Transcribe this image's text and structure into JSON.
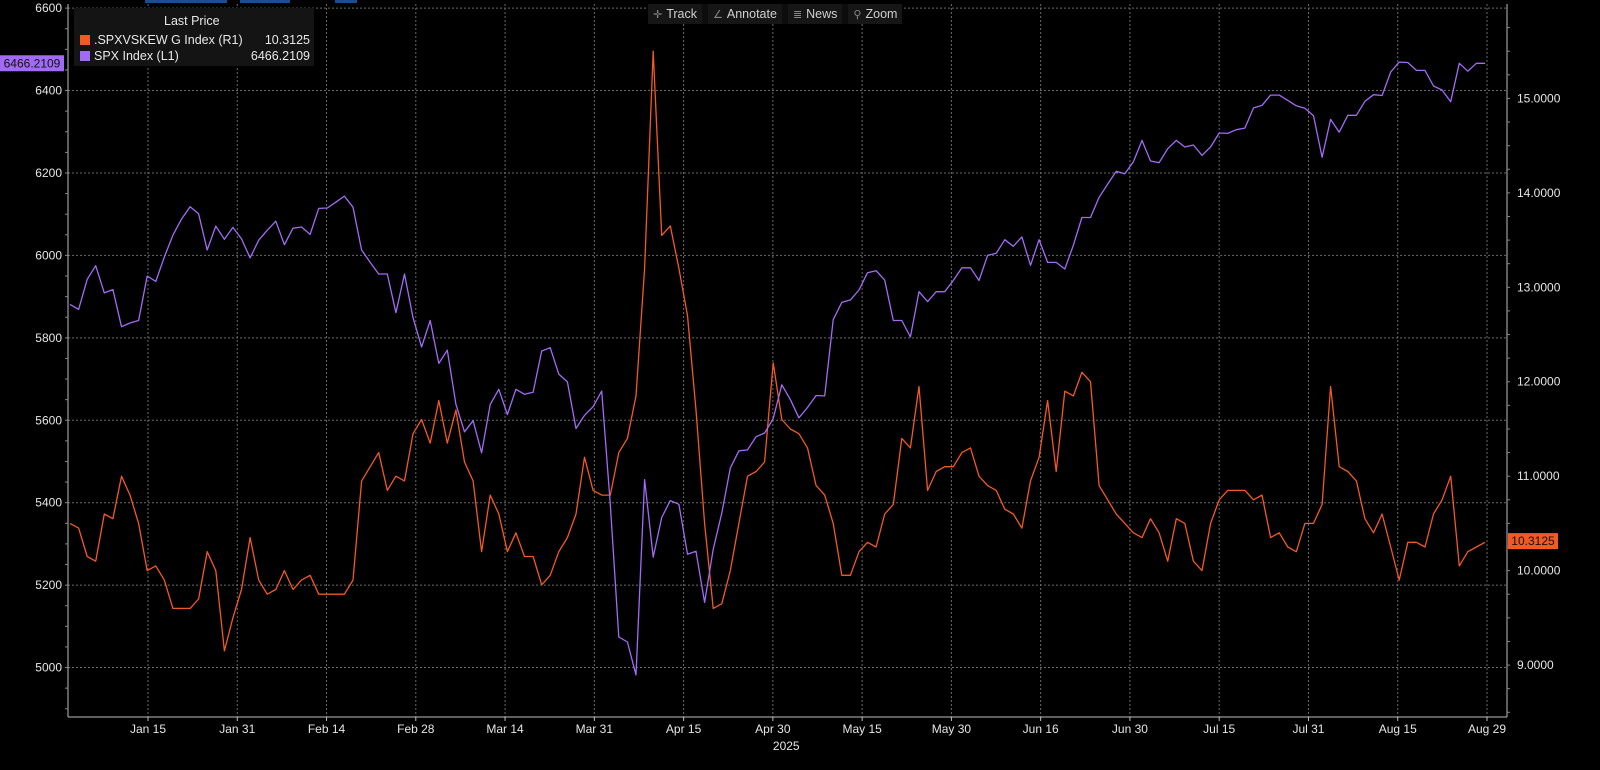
{
  "toolbar": {
    "track_label": "Track",
    "annotate_label": "Annotate",
    "news_label": "News",
    "zoom_label": "Zoom"
  },
  "legend": {
    "title": "Last Price",
    "series": [
      {
        "name": ".SPXVSKEW G Index  (R1)",
        "value": "10.3125",
        "color": "#f25a22"
      },
      {
        "name": "SPX Index  (L1)",
        "value": "6466.2109",
        "color": "#a26bf5"
      }
    ]
  },
  "chart_data": {
    "type": "line",
    "x_tick_labels": [
      "Jan 15",
      "Jan 31",
      "Feb 14",
      "Feb 28",
      "Mar 14",
      "Mar 31",
      "Apr 15",
      "Apr 30",
      "May 15",
      "May 30",
      "Jun 16",
      "Jun 30",
      "Jul 15",
      "Jul 31",
      "Aug 15",
      "Aug 29"
    ],
    "x_year_label": "2025",
    "left_axis": {
      "ticks": [
        "5000",
        "5200",
        "5400",
        "5600",
        "5800",
        "6000",
        "6200",
        "6400",
        "6600"
      ],
      "ylim": [
        4880,
        6610
      ]
    },
    "right_axis": {
      "ticks": [
        "9.0000",
        "10.0000",
        "11.0000",
        "12.0000",
        "13.0000",
        "14.0000",
        "15.0000"
      ],
      "ylim": [
        8.45,
        16.0
      ]
    },
    "last_value_tags": {
      "left": "6466.2109",
      "right": "10.3125"
    },
    "series": [
      {
        "name": ".SPXVSKEW G Index",
        "axis": "right",
        "color": "#f25a22",
        "values": [
          10.5,
          10.45,
          10.15,
          10.1,
          10.6,
          10.55,
          11.0,
          10.8,
          10.5,
          10.0,
          10.05,
          9.9,
          9.6,
          9.6,
          9.6,
          9.7,
          10.2,
          10.0,
          9.15,
          9.5,
          9.8,
          10.35,
          9.9,
          9.75,
          9.8,
          10.0,
          9.8,
          9.9,
          9.95,
          9.75,
          9.75,
          9.75,
          9.75,
          9.9,
          10.95,
          11.1,
          11.25,
          10.85,
          11.0,
          10.95,
          11.45,
          11.6,
          11.35,
          11.8,
          11.35,
          11.7,
          11.15,
          10.95,
          10.2,
          10.8,
          10.6,
          10.2,
          10.4,
          10.15,
          10.15,
          9.85,
          9.95,
          10.2,
          10.35,
          10.6,
          11.2,
          10.85,
          10.8,
          10.8,
          11.25,
          11.4,
          11.85,
          13.2,
          15.5,
          13.55,
          13.65,
          13.2,
          12.7,
          11.7,
          10.5,
          9.6,
          9.65,
          10.0,
          10.5,
          11.0,
          11.05,
          11.15,
          12.2,
          11.6,
          11.5,
          11.45,
          11.3,
          10.9,
          10.8,
          10.5,
          9.95,
          9.95,
          10.2,
          10.3,
          10.25,
          10.6,
          10.7,
          11.4,
          11.3,
          11.95,
          10.85,
          11.05,
          11.1,
          11.1,
          11.25,
          11.3,
          11.0,
          10.9,
          10.85,
          10.65,
          10.6,
          10.45,
          10.95,
          11.2,
          11.8,
          11.05,
          11.9,
          11.85,
          12.1,
          12.0,
          10.9,
          10.75,
          10.6,
          10.5,
          10.4,
          10.35,
          10.55,
          10.4,
          10.1,
          10.55,
          10.5,
          10.1,
          10.0,
          10.5,
          10.75,
          10.85,
          10.85,
          10.85,
          10.75,
          10.8,
          10.35,
          10.4,
          10.25,
          10.2,
          10.5,
          10.5,
          10.7,
          11.95,
          11.1,
          11.05,
          10.95,
          10.55,
          10.4,
          10.6,
          10.25,
          9.9,
          10.3,
          10.3,
          10.25,
          10.6,
          10.75,
          11.0,
          10.05,
          10.2,
          10.25,
          10.3
        ]
      },
      {
        "name": "SPX Index",
        "axis": "left",
        "color": "#a26bf5",
        "values": [
          5881,
          5869,
          5942,
          5975,
          5909,
          5917,
          5827,
          5836,
          5842,
          5950,
          5937,
          5996,
          6049,
          6088,
          6118,
          6101,
          6013,
          6071,
          6039,
          6068,
          6040,
          5994,
          6037,
          6061,
          6083,
          6026,
          6066,
          6069,
          6051,
          6114,
          6115,
          6129,
          6144,
          6117,
          6013,
          5983,
          5955,
          5955,
          5861,
          5955,
          5849,
          5778,
          5842,
          5738,
          5770,
          5639,
          5572,
          5599,
          5521,
          5638,
          5675,
          5614,
          5675,
          5663,
          5668,
          5768,
          5776,
          5712,
          5693,
          5580,
          5612,
          5633,
          5671,
          5396,
          5074,
          5062,
          4982,
          5456,
          5268,
          5364,
          5405,
          5396,
          5275,
          5282,
          5158,
          5287,
          5375,
          5484,
          5526,
          5528,
          5560,
          5569,
          5604,
          5686,
          5650,
          5606,
          5631,
          5660,
          5659,
          5844,
          5886,
          5892,
          5916,
          5958,
          5963,
          5940,
          5842,
          5842,
          5802,
          5912,
          5888,
          5912,
          5912,
          5939,
          5970,
          5970,
          5939,
          6000,
          6005,
          6038,
          6022,
          6045,
          5976,
          6038,
          5983,
          5983,
          5967,
          6025,
          6092,
          6092,
          6141,
          6173,
          6204,
          6198,
          6227,
          6279,
          6229,
          6225,
          6259,
          6279,
          6263,
          6268,
          6243,
          6263,
          6297,
          6296,
          6305,
          6309,
          6358,
          6364,
          6389,
          6389,
          6376,
          6363,
          6357,
          6339,
          6238,
          6330,
          6299,
          6340,
          6340,
          6374,
          6390,
          6388,
          6445,
          6469,
          6468,
          6449,
          6449,
          6411,
          6401,
          6373,
          6466,
          6447,
          6466,
          6466
        ]
      }
    ],
    "grid": true,
    "legend_position": "top-left"
  }
}
